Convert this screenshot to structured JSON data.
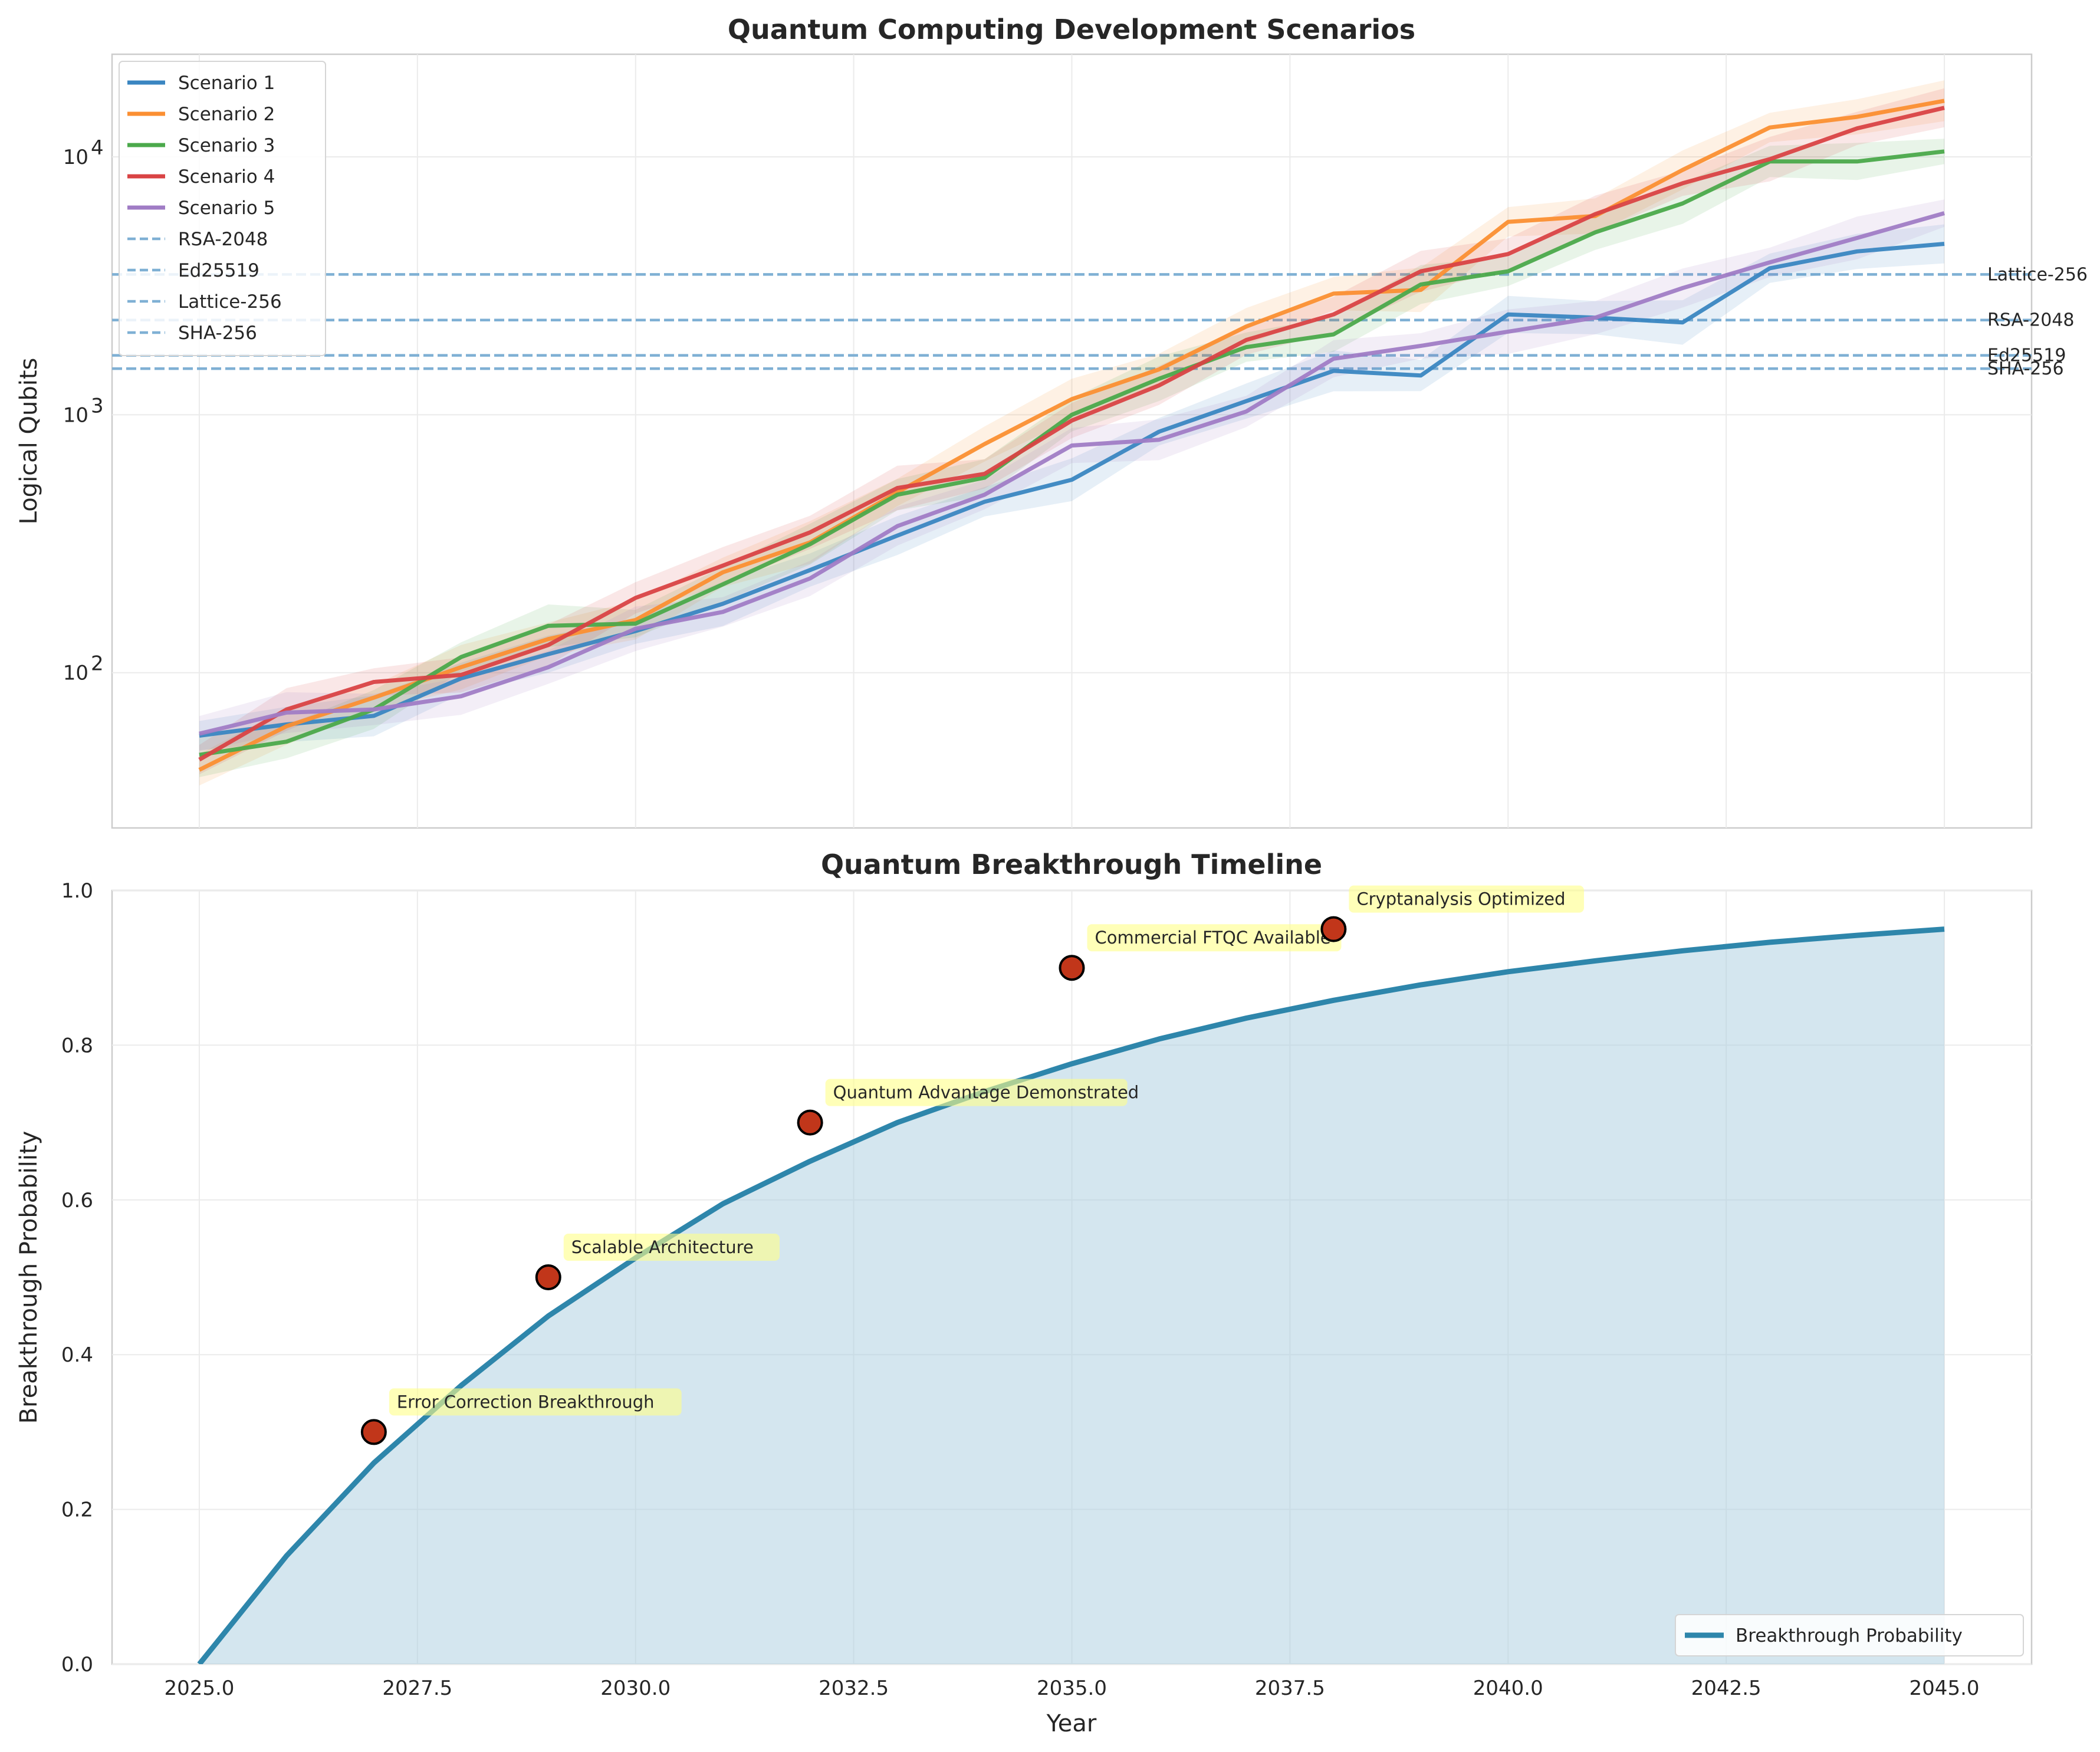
{
  "chart_data": [
    {
      "type": "line",
      "title": "Quantum Computing Development Scenarios",
      "xlabel": "",
      "ylabel": "Logical Qubits",
      "yscale": "log",
      "xlim": [
        2024.0,
        2046.0
      ],
      "ylim": [
        25,
        25000
      ],
      "grid": true,
      "legend_position": "top-left",
      "x": [
        2025,
        2026,
        2027,
        2028,
        2029,
        2030,
        2031,
        2032,
        2033,
        2034,
        2035,
        2036,
        2037,
        2038,
        2039,
        2040,
        2041,
        2042,
        2043,
        2044,
        2045
      ],
      "y_ticks": [
        {
          "value": 100,
          "base": "10",
          "exp": "2"
        },
        {
          "value": 1000,
          "base": "10",
          "exp": "3"
        },
        {
          "value": 10000,
          "base": "10",
          "exp": "4"
        }
      ],
      "series": [
        {
          "name": "Scenario 1",
          "color": "#3a86c1",
          "values": [
            57,
            63,
            68,
            95,
            118,
            145,
            185,
            250,
            340,
            460,
            560,
            860,
            1130,
            1480,
            1420,
            2450,
            2380,
            2280,
            3700,
            4300,
            4600
          ]
        },
        {
          "name": "Scenario 2",
          "color": "#fb8f32",
          "values": [
            42,
            62,
            80,
            105,
            135,
            160,
            245,
            320,
            500,
            770,
            1150,
            1500,
            2200,
            2950,
            3050,
            5600,
            5900,
            8900,
            13000,
            14300,
            16500
          ]
        },
        {
          "name": "Scenario 3",
          "color": "#4ba94b",
          "values": [
            48,
            54,
            72,
            115,
            152,
            155,
            220,
            315,
            490,
            570,
            1000,
            1380,
            1830,
            2050,
            3200,
            3600,
            5100,
            6600,
            9600,
            9600,
            10500
          ]
        },
        {
          "name": "Scenario 4",
          "color": "#d94344",
          "values": [
            46,
            72,
            92,
            98,
            128,
            195,
            260,
            350,
            520,
            590,
            950,
            1300,
            1950,
            2450,
            3600,
            4200,
            6000,
            7900,
            9800,
            12900,
            15500
          ]
        },
        {
          "name": "Scenario 5",
          "color": "#a07cc5",
          "values": [
            58,
            70,
            72,
            81,
            105,
            148,
            172,
            232,
            370,
            490,
            760,
            800,
            1030,
            1650,
            1850,
            2100,
            2380,
            3100,
            3900,
            4850,
            6050
          ]
        }
      ],
      "thresholds": [
        {
          "name": "RSA-2048",
          "value": 2330
        },
        {
          "name": "Ed25519",
          "value": 1700
        },
        {
          "name": "Lattice-256",
          "value": 3500
        },
        {
          "name": "SHA-256",
          "value": 1510
        }
      ],
      "threshold_color": "#7fb0d4"
    },
    {
      "type": "area",
      "title": "Quantum Breakthrough Timeline",
      "xlabel": "Year",
      "ylabel": "Breakthrough Probability",
      "xlim": [
        2024.0,
        2046.0
      ],
      "ylim": [
        0.0,
        1.0
      ],
      "grid": true,
      "legend_position": "bottom-right",
      "x_ticks": [
        "2025.0",
        "2027.5",
        "2030.0",
        "2032.5",
        "2035.0",
        "2037.5",
        "2040.0",
        "2042.5",
        "2045.0"
      ],
      "y_ticks": [
        "0.0",
        "0.2",
        "0.4",
        "0.6",
        "0.8",
        "1.0"
      ],
      "series": [
        {
          "name": "Breakthrough Probability",
          "color": "#2e86ab",
          "x": [
            2025,
            2026,
            2027,
            2028,
            2029,
            2030,
            2031,
            2032,
            2033,
            2034,
            2035,
            2036,
            2037,
            2038,
            2039,
            2040,
            2041,
            2042,
            2043,
            2044,
            2045
          ],
          "values": [
            0.0,
            0.14,
            0.26,
            0.36,
            0.45,
            0.525,
            0.595,
            0.65,
            0.7,
            0.74,
            0.776,
            0.808,
            0.835,
            0.858,
            0.878,
            0.895,
            0.909,
            0.922,
            0.933,
            0.942,
            0.95
          ]
        }
      ],
      "fill_color": "#a9cde0",
      "events": [
        {
          "x": 2027,
          "y": 0.3,
          "label": "Error Correction Breakthrough"
        },
        {
          "x": 2029,
          "y": 0.5,
          "label": "Scalable Architecture"
        },
        {
          "x": 2032,
          "y": 0.7,
          "label": "Quantum Advantage Demonstrated"
        },
        {
          "x": 2035,
          "y": 0.9,
          "label": "Commercial FTQC Available"
        },
        {
          "x": 2038,
          "y": 0.95,
          "label": "Cryptanalysis Optimized"
        }
      ],
      "event_color": "#c1361a"
    }
  ]
}
